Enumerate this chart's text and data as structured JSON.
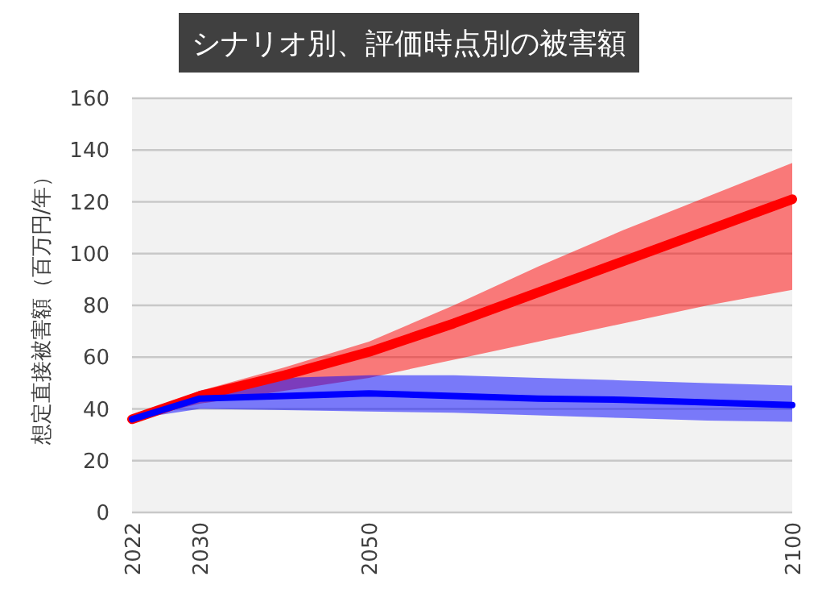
{
  "chart_data": {
    "type": "line",
    "title": "シナリオ別、評価時点別の被害額",
    "ylabel": "想定直接被害額（百万円/年）",
    "x": [
      2022,
      2030,
      2040,
      2050,
      2060,
      2070,
      2080,
      2090,
      2100
    ],
    "xlim": [
      2022,
      2100
    ],
    "xticks": [
      2022,
      2030,
      2050,
      2100
    ],
    "ylim": [
      0,
      160
    ],
    "yticks": [
      0,
      20,
      40,
      60,
      80,
      100,
      120,
      140,
      160
    ],
    "grid": "y",
    "series": [
      {
        "color": "#ff0000",
        "values": [
          36,
          45,
          53,
          62,
          73,
          85,
          97,
          109,
          121
        ],
        "lower": [
          36,
          42,
          47,
          52,
          59,
          66,
          73,
          80,
          86
        ],
        "upper": [
          36,
          47,
          56,
          66,
          80,
          95,
          109,
          122,
          135
        ]
      },
      {
        "color": "#0000ff",
        "values": [
          36,
          44,
          45,
          46,
          45,
          44,
          43.5,
          42.5,
          41.5
        ],
        "lower": [
          36,
          40,
          39.5,
          39,
          38.5,
          37.5,
          36.5,
          35.5,
          35
        ],
        "upper": [
          36,
          47,
          52,
          53,
          53,
          52,
          51,
          50,
          49
        ]
      }
    ]
  }
}
